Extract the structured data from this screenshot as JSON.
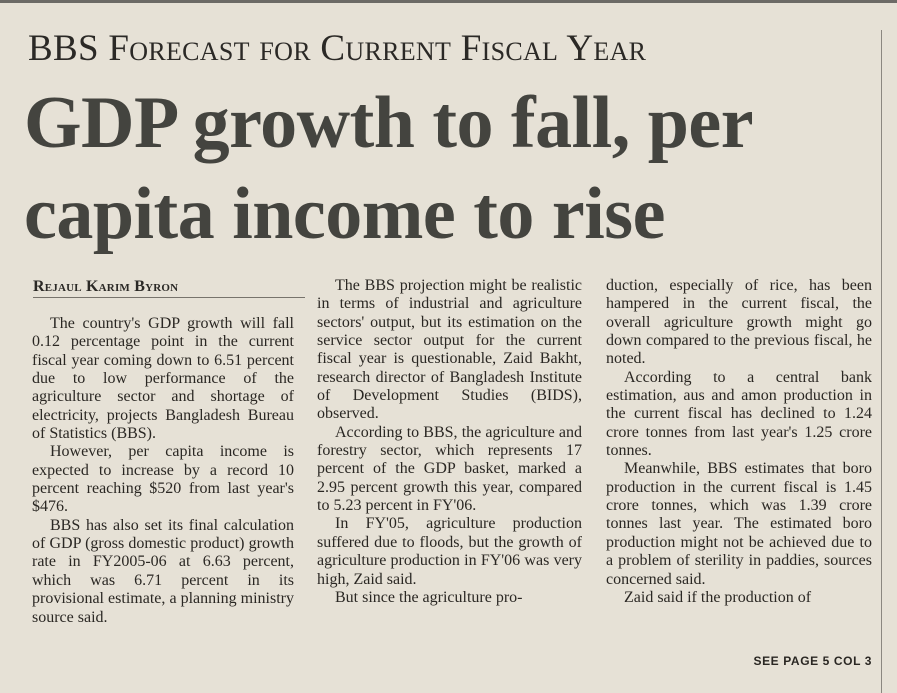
{
  "kicker": "BBS Forecast for Current Fiscal Year",
  "headline": {
    "line1": "GDP growth to fall, per",
    "line2": "capita income to rise"
  },
  "byline": "Rejaul Karim Byron",
  "col1": {
    "p1": "The country's GDP growth will fall 0.12 percentage point in the current fiscal year coming down to 6.51 percent due to low performance of the agriculture sector and shortage of electricity, projects Bangladesh Bureau of Statistics (BBS).",
    "p2": "However, per capita income is expected to increase by a record 10 percent reaching $520 from last year's $476.",
    "p3": "BBS has also set its final calculation of GDP (gross domestic product) growth rate in FY2005-06 at 6.63 percent, which was 6.71 percent in its provisional estimate, a planning ministry source said."
  },
  "col2": {
    "p1": "The BBS projection might be realistic in terms of industrial and agriculture sectors' output, but its estimation on the service sector output for the current fiscal year is questionable, Zaid Bakht, research director of Bangladesh Institute of Development Studies (BIDS), observed.",
    "p2": "According to BBS, the agriculture and forestry sector, which represents 17 percent of the GDP basket, marked a 2.95 percent growth this year, compared to 5.23 percent in FY'06.",
    "p3": "In FY'05, agriculture production suffered due to floods, but the growth of agriculture production in FY'06 was very high, Zaid said.",
    "p4": "But since the agriculture pro-"
  },
  "col3": {
    "p1": "duction, especially of rice, has been hampered in the current fiscal, the overall agriculture growth might go down compared to the previous fiscal, he noted.",
    "p2": "According to a central bank estimation, aus and amon production in the current fiscal has declined to 1.24 crore tonnes from last year's 1.25 crore tonnes.",
    "p3": "Meanwhile, BBS estimates that boro production in the current fiscal is 1.45 crore tonnes, which was 1.39 crore tonnes last year. The estimated boro production might not be achieved due to a problem of sterility in paddies, sources concerned said.",
    "p4": "Zaid said if the production of"
  },
  "jump": "SEE PAGE 5 COL 3",
  "colors": {
    "paper": "#e6e1d6",
    "ink": "#262320",
    "headline_ink": "#44443f"
  }
}
